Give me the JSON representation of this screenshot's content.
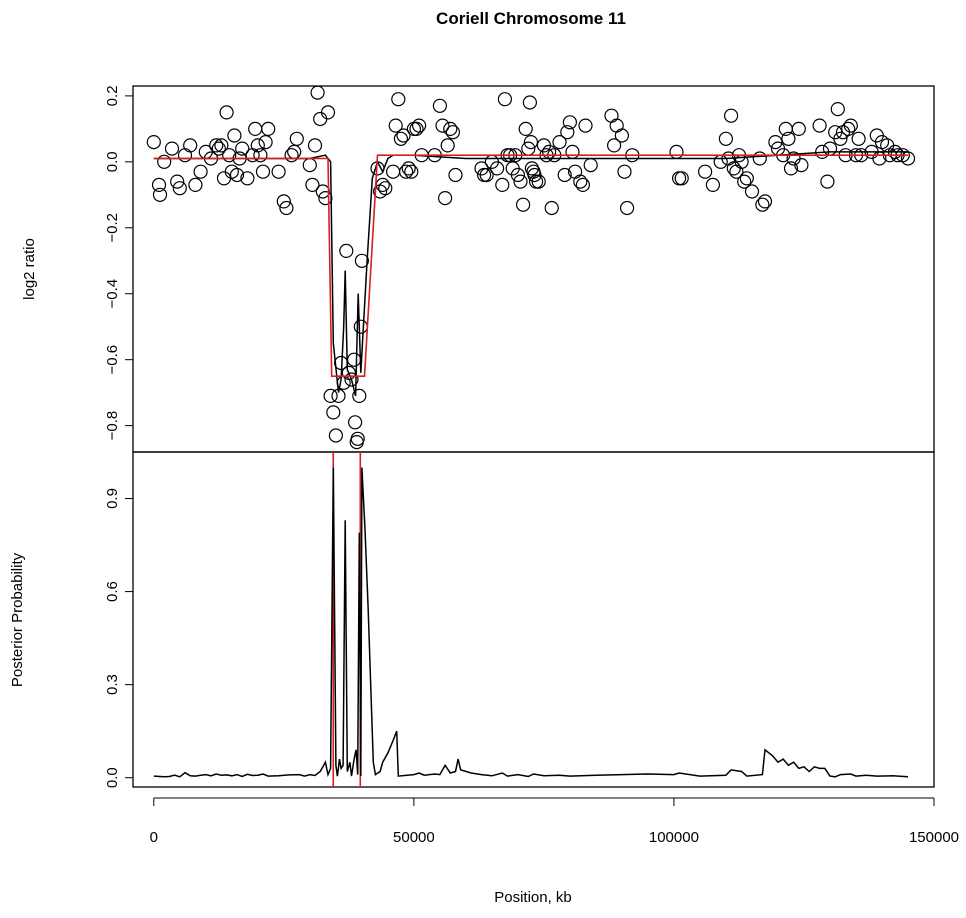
{
  "chart_data": {
    "type": "scatter",
    "title": "Coriell Chromosome 11",
    "xlabel": "Position, kb",
    "xlim": [
      -4000,
      150000
    ],
    "xticks": [
      0,
      50000,
      100000,
      150000
    ],
    "xtick_labels": [
      "0",
      "50000",
      "100000",
      "150000"
    ],
    "top_panel": {
      "ylabel": "log2 ratio",
      "ylim": [
        -0.88,
        0.23
      ],
      "yticks": [
        -0.8,
        -0.6,
        -0.4,
        -0.2,
        0.0,
        0.2
      ],
      "ytick_labels": [
        "−0.8",
        "−0.6",
        "−0.4",
        "−0.2",
        "0.0",
        "0.2"
      ],
      "points": [
        [
          0,
          0.06
        ],
        [
          1000,
          -0.07
        ],
        [
          1200,
          -0.1
        ],
        [
          2000,
          0.0
        ],
        [
          3500,
          0.04
        ],
        [
          4500,
          -0.06
        ],
        [
          5000,
          -0.08
        ],
        [
          6000,
          0.02
        ],
        [
          7000,
          0.05
        ],
        [
          8000,
          -0.07
        ],
        [
          9000,
          -0.03
        ],
        [
          10000,
          0.03
        ],
        [
          11000,
          0.01
        ],
        [
          12000,
          0.05
        ],
        [
          12500,
          0.04
        ],
        [
          13000,
          0.05
        ],
        [
          13500,
          -0.05
        ],
        [
          14000,
          0.15
        ],
        [
          14500,
          0.02
        ],
        [
          15000,
          -0.03
        ],
        [
          15500,
          0.08
        ],
        [
          16000,
          -0.04
        ],
        [
          16500,
          0.01
        ],
        [
          17000,
          0.04
        ],
        [
          18000,
          -0.05
        ],
        [
          19000,
          0.02
        ],
        [
          19500,
          0.1
        ],
        [
          20000,
          0.05
        ],
        [
          20500,
          0.02
        ],
        [
          21000,
          -0.03
        ],
        [
          21500,
          0.06
        ],
        [
          22000,
          0.1
        ],
        [
          24000,
          -0.03
        ],
        [
          25000,
          -0.12
        ],
        [
          25500,
          -0.14
        ],
        [
          26500,
          0.02
        ],
        [
          27000,
          0.03
        ],
        [
          27500,
          0.07
        ],
        [
          30000,
          -0.01
        ],
        [
          30500,
          -0.07
        ],
        [
          31000,
          0.05
        ],
        [
          31500,
          0.21
        ],
        [
          32000,
          0.13
        ],
        [
          32500,
          -0.09
        ],
        [
          33000,
          -0.11
        ],
        [
          33500,
          0.15
        ],
        [
          34000,
          -0.71
        ],
        [
          34500,
          -0.76
        ],
        [
          35000,
          -0.83
        ],
        [
          35500,
          -0.71
        ],
        [
          36000,
          -0.61
        ],
        [
          36500,
          -0.67
        ],
        [
          37000,
          -0.27
        ],
        [
          37500,
          -0.64
        ],
        [
          38000,
          -0.66
        ],
        [
          38500,
          -0.6
        ],
        [
          38700,
          -0.79
        ],
        [
          39000,
          -0.85
        ],
        [
          39200,
          -0.84
        ],
        [
          39500,
          -0.71
        ],
        [
          39800,
          -0.5
        ],
        [
          40000,
          -0.3
        ],
        [
          43000,
          -0.02
        ],
        [
          43500,
          -0.09
        ],
        [
          44000,
          -0.07
        ],
        [
          44500,
          -0.08
        ],
        [
          46000,
          -0.03
        ],
        [
          46500,
          0.11
        ],
        [
          47000,
          0.19
        ],
        [
          47500,
          0.07
        ],
        [
          48000,
          0.08
        ],
        [
          48500,
          -0.03
        ],
        [
          49000,
          -0.02
        ],
        [
          49500,
          -0.03
        ],
        [
          50000,
          0.1
        ],
        [
          50500,
          0.1
        ],
        [
          51000,
          0.11
        ],
        [
          51500,
          0.02
        ],
        [
          54000,
          0.02
        ],
        [
          55000,
          0.17
        ],
        [
          55500,
          0.11
        ],
        [
          56000,
          -0.11
        ],
        [
          56500,
          0.05
        ],
        [
          57000,
          0.1
        ],
        [
          57500,
          0.09
        ],
        [
          58000,
          -0.04
        ],
        [
          63000,
          -0.02
        ],
        [
          63500,
          -0.04
        ],
        [
          64000,
          -0.04
        ],
        [
          65000,
          0.0
        ],
        [
          66000,
          -0.02
        ],
        [
          67000,
          -0.07
        ],
        [
          67500,
          0.19
        ],
        [
          68000,
          0.02
        ],
        [
          68500,
          0.02
        ],
        [
          69000,
          -0.02
        ],
        [
          69500,
          0.02
        ],
        [
          70000,
          -0.04
        ],
        [
          70500,
          -0.06
        ],
        [
          71000,
          -0.13
        ],
        [
          71500,
          0.1
        ],
        [
          72000,
          0.04
        ],
        [
          72300,
          0.18
        ],
        [
          72500,
          0.06
        ],
        [
          72700,
          -0.02
        ],
        [
          73000,
          -0.03
        ],
        [
          73200,
          -0.04
        ],
        [
          73500,
          -0.06
        ],
        [
          74000,
          -0.06
        ],
        [
          75000,
          0.05
        ],
        [
          75500,
          0.02
        ],
        [
          76000,
          0.03
        ],
        [
          76500,
          -0.14
        ],
        [
          77000,
          0.02
        ],
        [
          78000,
          0.06
        ],
        [
          79000,
          -0.04
        ],
        [
          79500,
          0.09
        ],
        [
          80000,
          0.12
        ],
        [
          80500,
          0.03
        ],
        [
          81000,
          -0.03
        ],
        [
          82000,
          -0.06
        ],
        [
          82500,
          -0.07
        ],
        [
          83000,
          0.11
        ],
        [
          84000,
          -0.01
        ],
        [
          88000,
          0.14
        ],
        [
          88500,
          0.05
        ],
        [
          89000,
          0.11
        ],
        [
          90000,
          0.08
        ],
        [
          90500,
          -0.03
        ],
        [
          91000,
          -0.14
        ],
        [
          92000,
          0.02
        ],
        [
          100500,
          0.03
        ],
        [
          101000,
          -0.05
        ],
        [
          101500,
          -0.05
        ],
        [
          106000,
          -0.03
        ],
        [
          107500,
          -0.07
        ],
        [
          109000,
          0.0
        ],
        [
          110000,
          0.07
        ],
        [
          110500,
          0.01
        ],
        [
          111000,
          0.14
        ],
        [
          111500,
          -0.02
        ],
        [
          112000,
          -0.03
        ],
        [
          112500,
          0.02
        ],
        [
          113000,
          0.0
        ],
        [
          113500,
          -0.06
        ],
        [
          114000,
          -0.05
        ],
        [
          115000,
          -0.09
        ],
        [
          116500,
          0.01
        ],
        [
          117000,
          -0.13
        ],
        [
          117500,
          -0.12
        ],
        [
          119500,
          0.06
        ],
        [
          120000,
          0.04
        ],
        [
          121000,
          0.02
        ],
        [
          121500,
          0.1
        ],
        [
          122000,
          0.07
        ],
        [
          122500,
          -0.02
        ],
        [
          123000,
          0.01
        ],
        [
          124000,
          0.1
        ],
        [
          124500,
          -0.01
        ],
        [
          128000,
          0.11
        ],
        [
          128500,
          0.03
        ],
        [
          129500,
          -0.06
        ],
        [
          130000,
          0.04
        ],
        [
          131000,
          0.09
        ],
        [
          131500,
          0.16
        ],
        [
          132000,
          0.07
        ],
        [
          132500,
          0.09
        ],
        [
          133000,
          0.02
        ],
        [
          133500,
          0.1
        ],
        [
          134000,
          0.11
        ],
        [
          135000,
          0.02
        ],
        [
          135500,
          0.07
        ],
        [
          136000,
          0.02
        ],
        [
          138000,
          0.03
        ],
        [
          139000,
          0.08
        ],
        [
          139500,
          0.01
        ],
        [
          140000,
          0.06
        ],
        [
          141000,
          0.05
        ],
        [
          141500,
          0.02
        ],
        [
          142500,
          0.03
        ],
        [
          143000,
          0.02
        ],
        [
          144000,
          0.02
        ],
        [
          145000,
          0.01
        ]
      ],
      "segments": [
        [
          0,
          0.01
        ],
        [
          33500,
          0.01
        ],
        [
          34200,
          -0.65
        ],
        [
          40500,
          -0.65
        ],
        [
          43000,
          0.02
        ],
        [
          145000,
          0.02
        ]
      ],
      "smooth": [
        [
          0,
          0.01
        ],
        [
          10000,
          0.01
        ],
        [
          20000,
          0.01
        ],
        [
          30000,
          0.01
        ],
        [
          33000,
          0.02
        ],
        [
          34000,
          0.0
        ],
        [
          34500,
          -0.55
        ],
        [
          35500,
          -0.7
        ],
        [
          36000,
          -0.66
        ],
        [
          36500,
          -0.5
        ],
        [
          36800,
          -0.33
        ],
        [
          37200,
          -0.63
        ],
        [
          38000,
          -0.66
        ],
        [
          38800,
          -0.71
        ],
        [
          39300,
          -0.4
        ],
        [
          39800,
          -0.64
        ],
        [
          41000,
          -0.3
        ],
        [
          42000,
          -0.05
        ],
        [
          43000,
          0.0
        ],
        [
          44000,
          -0.03
        ],
        [
          45000,
          0.01
        ],
        [
          46000,
          0.02
        ],
        [
          50000,
          0.02
        ],
        [
          60000,
          0.01
        ],
        [
          80000,
          0.01
        ],
        [
          100000,
          0.01
        ],
        [
          110000,
          0.01
        ],
        [
          120000,
          0.02
        ],
        [
          130000,
          0.03
        ],
        [
          145000,
          0.03
        ]
      ]
    },
    "bottom_panel": {
      "ylabel": "Posterior Probability",
      "ylim": [
        -0.03,
        1.05
      ],
      "yticks": [
        0.0,
        0.3,
        0.6,
        0.9
      ],
      "ytick_labels": [
        "0.0",
        "0.3",
        "0.6",
        "0.9"
      ],
      "breakpoints": [
        34500,
        39700
      ],
      "line": [
        [
          0,
          0.005
        ],
        [
          2000,
          0.003
        ],
        [
          3000,
          0.004
        ],
        [
          4000,
          0.008
        ],
        [
          5000,
          0.003
        ],
        [
          6000,
          0.016
        ],
        [
          7000,
          0.006
        ],
        [
          8000,
          0.005
        ],
        [
          9000,
          0.008
        ],
        [
          10000,
          0.01
        ],
        [
          11000,
          0.006
        ],
        [
          12000,
          0.012
        ],
        [
          13000,
          0.008
        ],
        [
          14000,
          0.009
        ],
        [
          15000,
          0.006
        ],
        [
          16000,
          0.01
        ],
        [
          17000,
          0.004
        ],
        [
          18000,
          0.011
        ],
        [
          19000,
          0.007
        ],
        [
          20000,
          0.008
        ],
        [
          21000,
          0.012
        ],
        [
          22000,
          0.005
        ],
        [
          24000,
          0.006
        ],
        [
          26000,
          0.009
        ],
        [
          28000,
          0.01
        ],
        [
          29000,
          0.005
        ],
        [
          30000,
          0.01
        ],
        [
          31000,
          0.007
        ],
        [
          32000,
          0.02
        ],
        [
          33000,
          0.05
        ],
        [
          33500,
          0.01
        ],
        [
          34000,
          0.03
        ],
        [
          34500,
          1.0
        ],
        [
          35000,
          0.04
        ],
        [
          35300,
          0.005
        ],
        [
          35700,
          0.06
        ],
        [
          36000,
          0.03
        ],
        [
          36400,
          0.04
        ],
        [
          36800,
          0.83
        ],
        [
          37200,
          0.02
        ],
        [
          37700,
          0.05
        ],
        [
          38000,
          0.005
        ],
        [
          38500,
          0.06
        ],
        [
          38900,
          0.09
        ],
        [
          39200,
          0.01
        ],
        [
          39500,
          0.79
        ],
        [
          39800,
          0.005
        ],
        [
          40000,
          1.0
        ],
        [
          40600,
          0.8
        ],
        [
          41200,
          0.55
        ],
        [
          41700,
          0.3
        ],
        [
          42200,
          0.05
        ],
        [
          42600,
          0.01
        ],
        [
          43500,
          0.02
        ],
        [
          44000,
          0.05
        ],
        [
          45000,
          0.08
        ],
        [
          46000,
          0.12
        ],
        [
          46700,
          0.15
        ],
        [
          47000,
          0.005
        ],
        [
          50000,
          0.01
        ],
        [
          51000,
          0.015
        ],
        [
          52000,
          0.008
        ],
        [
          54000,
          0.012
        ],
        [
          55000,
          0.01
        ],
        [
          56000,
          0.04
        ],
        [
          57000,
          0.015
        ],
        [
          58000,
          0.02
        ],
        [
          58500,
          0.06
        ],
        [
          59000,
          0.025
        ],
        [
          61000,
          0.015
        ],
        [
          63000,
          0.01
        ],
        [
          65000,
          0.006
        ],
        [
          67000,
          0.015
        ],
        [
          68000,
          0.005
        ],
        [
          70000,
          0.01
        ],
        [
          72000,
          0.004
        ],
        [
          73000,
          0.012
        ],
        [
          75000,
          0.006
        ],
        [
          78000,
          0.008
        ],
        [
          80000,
          0.005
        ],
        [
          85000,
          0.008
        ],
        [
          90000,
          0.01
        ],
        [
          95000,
          0.012
        ],
        [
          100000,
          0.01
        ],
        [
          101000,
          0.015
        ],
        [
          105000,
          0.005
        ],
        [
          110000,
          0.008
        ],
        [
          111000,
          0.025
        ],
        [
          113000,
          0.02
        ],
        [
          114000,
          0.005
        ],
        [
          117000,
          0.01
        ],
        [
          117500,
          0.09
        ],
        [
          119000,
          0.07
        ],
        [
          120000,
          0.05
        ],
        [
          121000,
          0.06
        ],
        [
          122000,
          0.04
        ],
        [
          123000,
          0.05
        ],
        [
          124000,
          0.03
        ],
        [
          125000,
          0.035
        ],
        [
          126000,
          0.02
        ],
        [
          127000,
          0.035
        ],
        [
          128000,
          0.03
        ],
        [
          129000,
          0.03
        ],
        [
          130000,
          0.005
        ],
        [
          131000,
          0.003
        ],
        [
          132000,
          0.01
        ],
        [
          134000,
          0.012
        ],
        [
          135000,
          0.005
        ],
        [
          137000,
          0.008
        ],
        [
          139000,
          0.005
        ],
        [
          142000,
          0.006
        ],
        [
          145000,
          0.003
        ]
      ]
    },
    "colors": {
      "points": "#000000",
      "smooth": "#000000",
      "segments": "#d62020",
      "breakpoints": "#d62020",
      "frame": "#000000"
    }
  }
}
